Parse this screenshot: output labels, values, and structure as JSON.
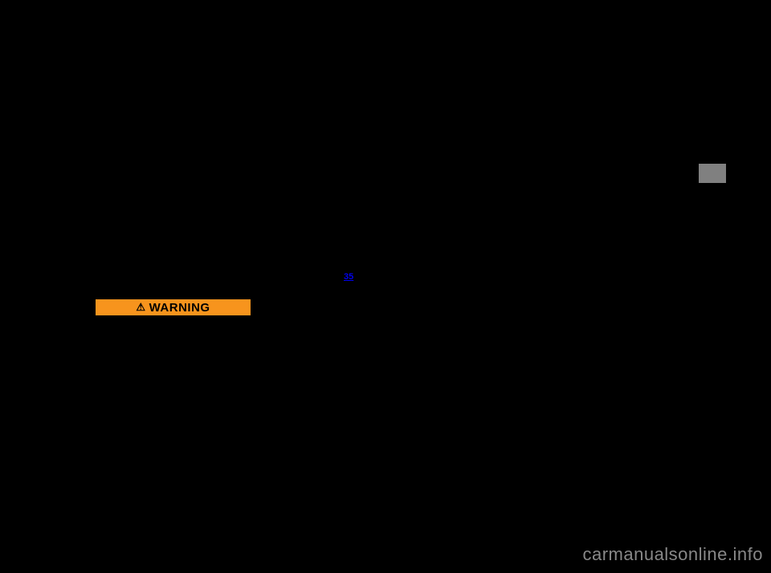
{
  "warning": {
    "label": "WARNING",
    "symbol": "⚠"
  },
  "page_ref": "35",
  "tab": {
    "color": "#808080"
  },
  "watermark": "carmanualsonline.info",
  "colors": {
    "background": "#000000",
    "warning_bg": "#f7941d",
    "link": "#0000ee",
    "tab": "#808080",
    "watermark_text": "#888888"
  }
}
